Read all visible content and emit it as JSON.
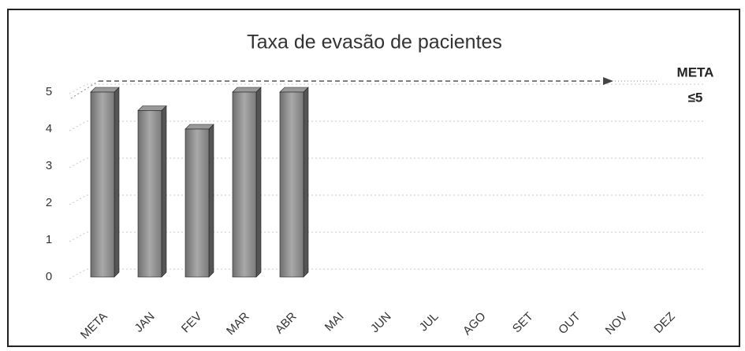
{
  "chart_data": {
    "type": "bar",
    "title": "Taxa de evasão de pacientes",
    "categories": [
      "META",
      "JAN",
      "FEV",
      "MAR",
      "ABR",
      "MAI",
      "JUN",
      "JUL",
      "AGO",
      "SET",
      "OUT",
      "NOV",
      "DEZ"
    ],
    "values": [
      5,
      4.5,
      4,
      5,
      5,
      null,
      null,
      null,
      null,
      null,
      null,
      null,
      null
    ],
    "color": "#8c8c8c",
    "ylim": [
      0,
      5
    ],
    "yticks": [
      0,
      1,
      2,
      3,
      4,
      5
    ],
    "grid": true,
    "target": 5,
    "annotation": [
      "META",
      "≤5"
    ]
  }
}
